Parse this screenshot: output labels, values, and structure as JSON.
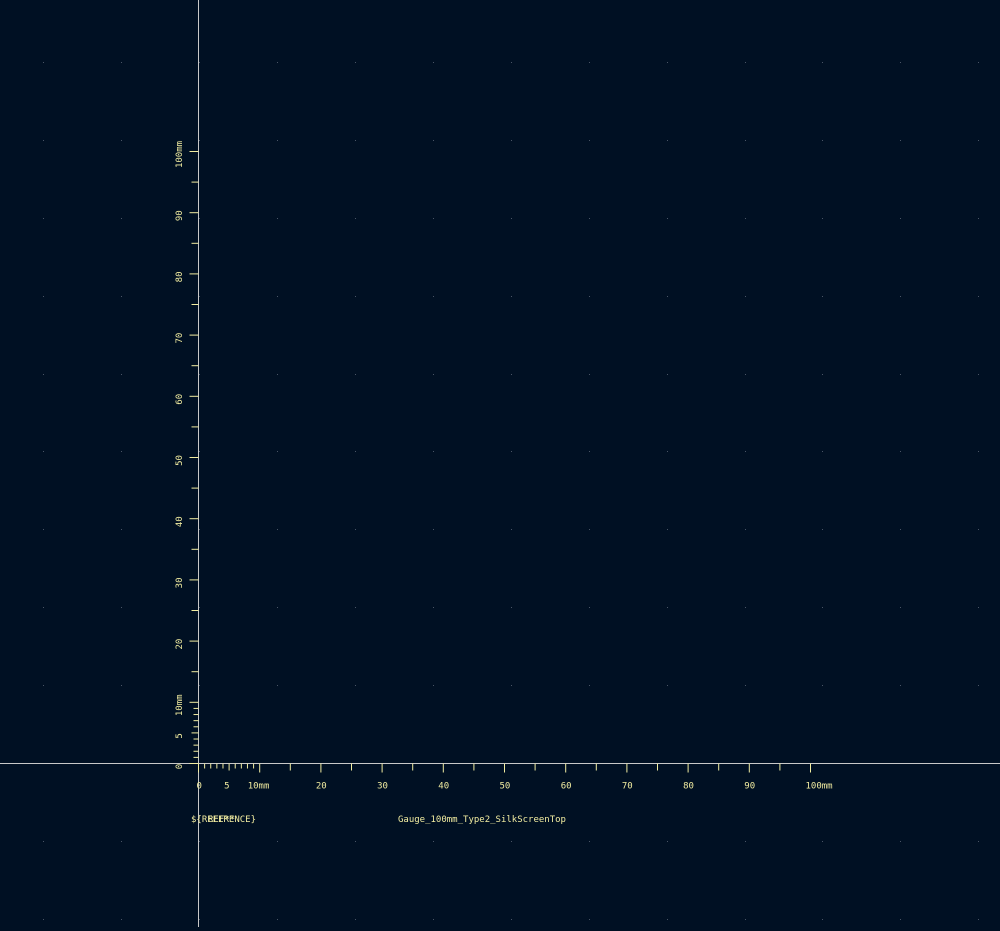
{
  "colors": {
    "background": "#001023",
    "silkscreen": "#f2eda1",
    "crosshair": "#c8c8c8",
    "grid_dot": "#4a5566"
  },
  "ruler": {
    "x_labels": [
      "0",
      "5",
      "10mm",
      "20",
      "30",
      "40",
      "50",
      "60",
      "70",
      "80",
      "90",
      "100mm"
    ],
    "y_labels": [
      "0",
      "5",
      "10mm",
      "20",
      "30",
      "40",
      "50",
      "60",
      "70",
      "80",
      "90",
      "100mm"
    ]
  },
  "footprint": {
    "reference": "${REFERENCE}",
    "value_overlap": "REF**",
    "value": "Gauge_100mm_Type2_SilkScreenTop"
  }
}
